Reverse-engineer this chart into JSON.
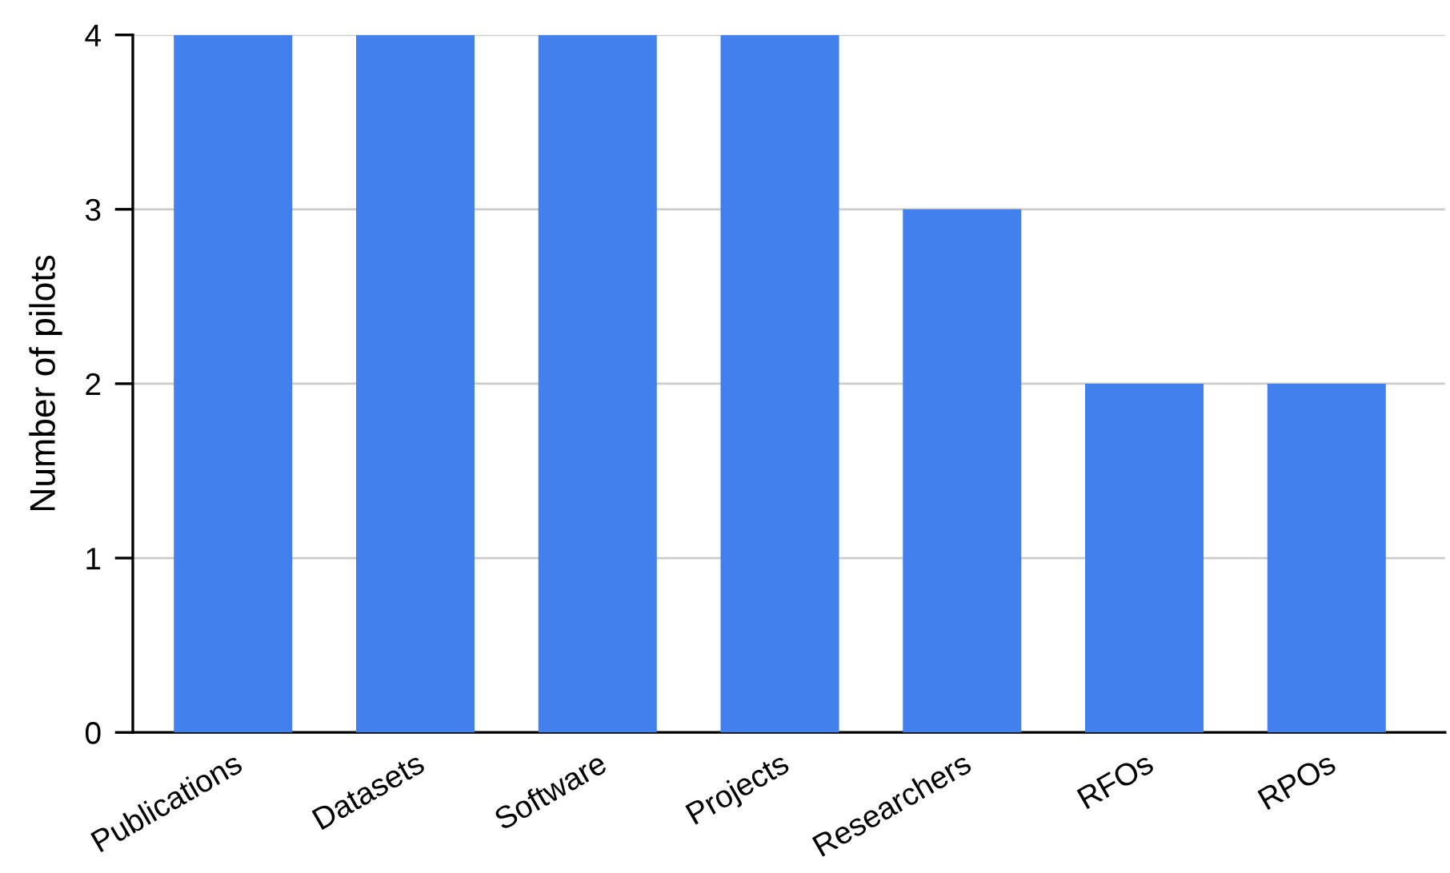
{
  "chart_data": {
    "type": "bar",
    "ylabel": "Number of pilots",
    "categories": [
      "Publications",
      "Datasets",
      "Software",
      "Projects",
      "Researchers",
      "RFOs",
      "RPOs"
    ],
    "values": [
      4,
      4,
      4,
      4,
      3,
      2,
      2
    ],
    "color": "#4280ee",
    "ylim": [
      0,
      4
    ],
    "yticks": [
      0,
      1,
      2,
      3,
      4
    ],
    "grid": "y"
  }
}
